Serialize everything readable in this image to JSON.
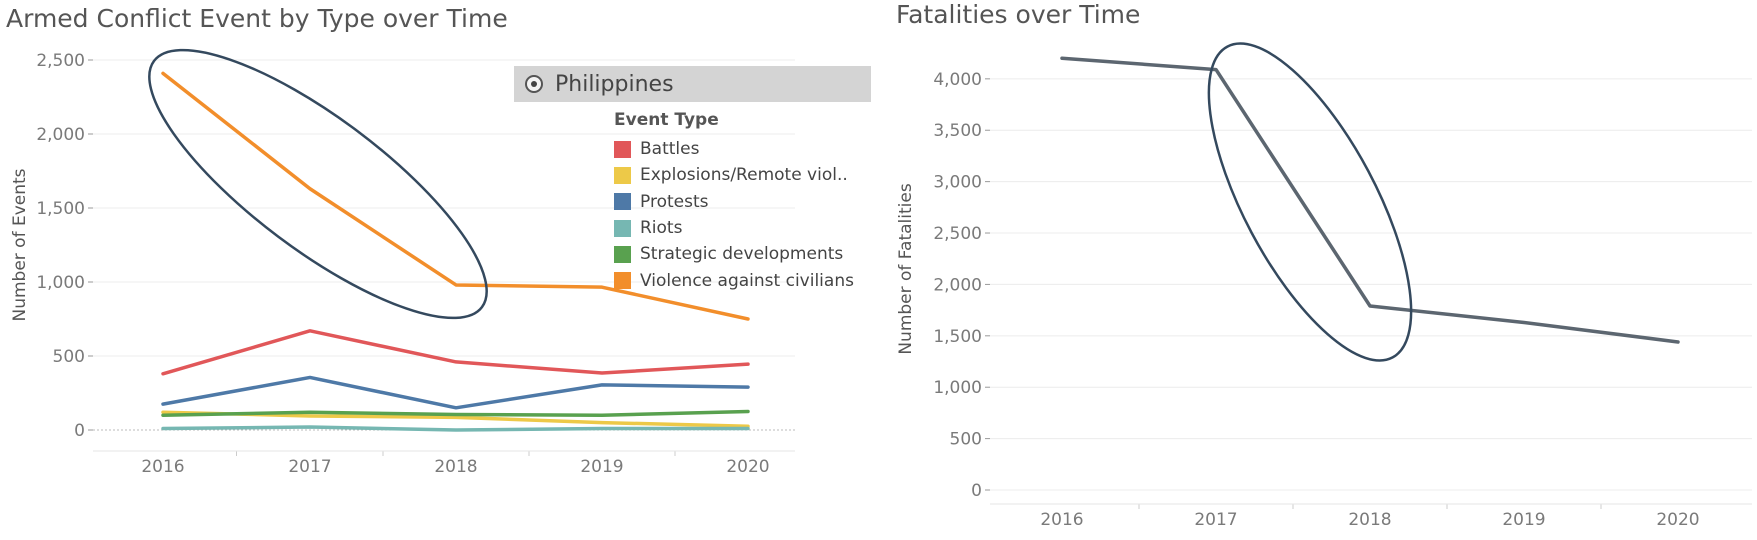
{
  "chart_data": [
    {
      "type": "line",
      "title": "Armed Conflict Event by Type over Time",
      "ylabel": "Number of Events",
      "xlabel": "",
      "x": [
        "2016",
        "2017",
        "2018",
        "2019",
        "2020"
      ],
      "ylim": [
        0,
        2500
      ],
      "yticks": [
        "0",
        "500",
        "1,000",
        "1,500",
        "2,000",
        "2,500"
      ],
      "grid": true,
      "legend_title": "Event Type",
      "legend_placement": "top-right",
      "filter": {
        "label": "Philippines",
        "selected": true
      },
      "series": [
        {
          "name": "Battles",
          "color": "#e15759",
          "values": [
            380,
            670,
            460,
            385,
            445
          ]
        },
        {
          "name": "Explosions/Remote viol..",
          "color": "#edc948",
          "values": [
            120,
            95,
            85,
            50,
            25
          ]
        },
        {
          "name": "Protests",
          "color": "#4e79a7",
          "values": [
            175,
            355,
            150,
            305,
            290
          ]
        },
        {
          "name": "Riots",
          "color": "#76b7b2",
          "values": [
            10,
            20,
            0,
            10,
            10
          ]
        },
        {
          "name": "Strategic developments",
          "color": "#59a14f",
          "values": [
            100,
            120,
            105,
            100,
            125
          ]
        },
        {
          "name": "Violence against civilians",
          "color": "#f28e2b",
          "values": [
            2410,
            1630,
            980,
            965,
            750
          ]
        }
      ],
      "annotation": {
        "shape": "ellipse",
        "color": "#34495e",
        "highlights": "Violence against civilians 2016–2018"
      }
    },
    {
      "type": "line",
      "title": "Fatalities over Time",
      "ylabel": "Number of Fatalities",
      "xlabel": "",
      "x": [
        "2016",
        "2017",
        "2018",
        "2019",
        "2020"
      ],
      "ylim": [
        0,
        4300
      ],
      "yticks": [
        "0",
        "500",
        "1,000",
        "1,500",
        "2,000",
        "2,500",
        "3,000",
        "3,500",
        "4,000"
      ],
      "grid": true,
      "series": [
        {
          "color": "#5c6670",
          "values": [
            4200,
            4090,
            1790,
            1630,
            1440
          ]
        }
      ],
      "annotation": {
        "shape": "ellipse",
        "color": "#34495e",
        "highlights": "Fatalities 2017–2018"
      }
    }
  ]
}
